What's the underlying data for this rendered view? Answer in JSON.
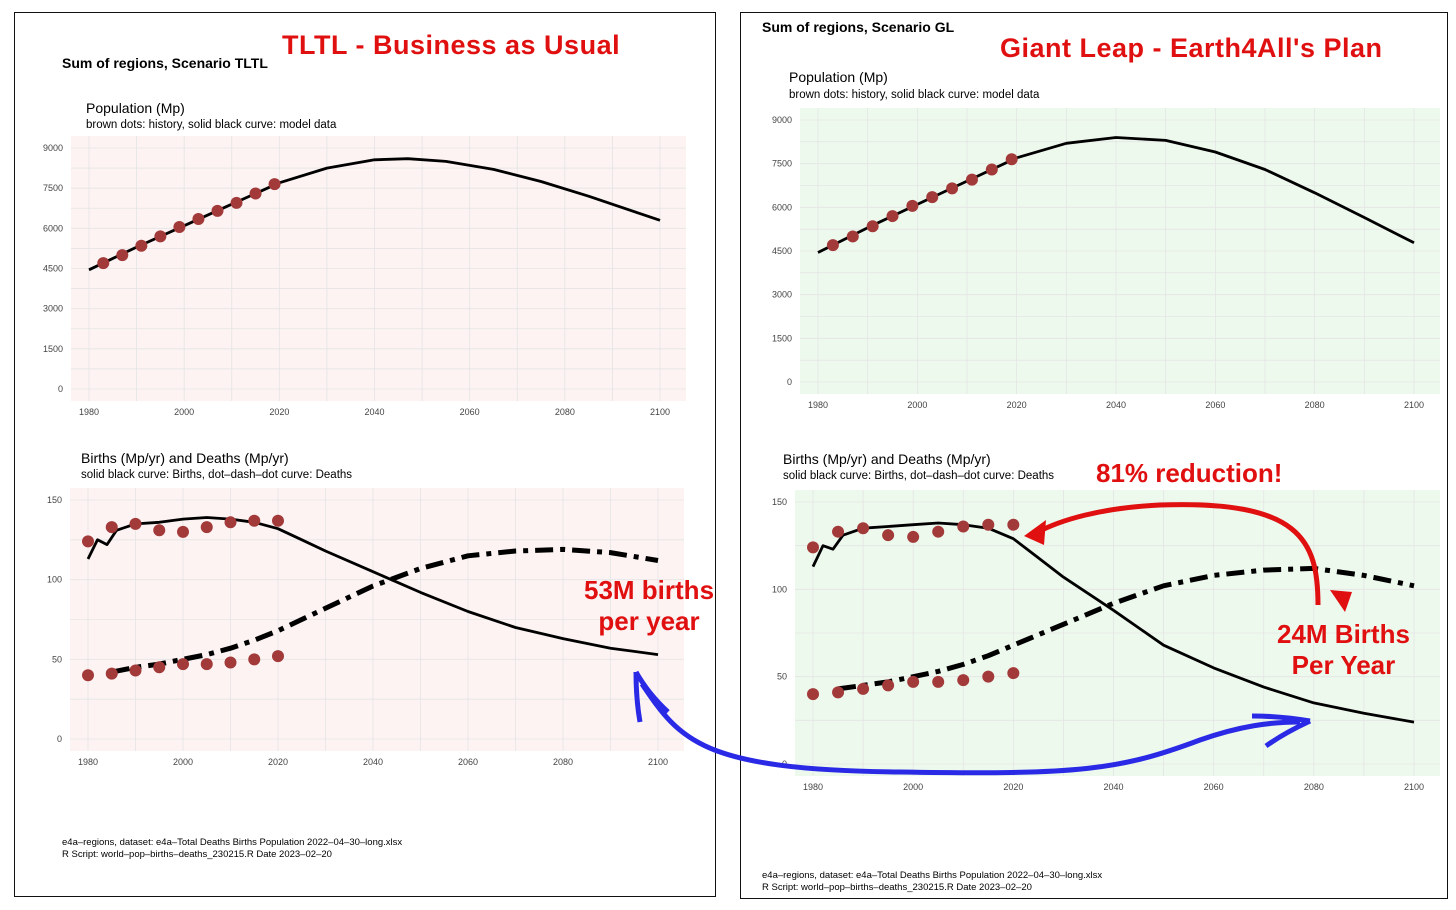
{
  "left_panel": {
    "heading": "Sum of regions, Scenario TLTL",
    "banner": "TLTL - Business as Usual",
    "footer_line1": "e4a–regions, dataset: e4a–Total Deaths Births Population 2022–04–30–long.xlsx",
    "footer_line2": "R Script: world–pop–births–deaths_230215.R  Date 2023–02–20"
  },
  "right_panel": {
    "heading": "Sum of regions, Scenario GL",
    "banner": "Giant Leap  - Earth4All's Plan",
    "footer_line1": "e4a–regions, dataset: e4a–Total Deaths Births Population 2022–04–30–long.xlsx",
    "footer_line2": "R Script: world–pop–births–deaths_230215.R  Date 2023–02–20"
  },
  "annotations": {
    "tltl_births": "53M births\nper year",
    "gl_births": "24M Births\nPer Year",
    "reduction": "81% reduction!"
  },
  "colors": {
    "tltl_background": "#fdf3f3",
    "gl_background": "#eef9ee",
    "history_dots": "#a33a3a",
    "model_line": "#000000",
    "annotation_red": "#e01010",
    "annotation_blue_arrow": "#2a2ae6"
  },
  "chart_data": [
    {
      "id": "tltl_population",
      "type": "line",
      "title": "Population (Mp)",
      "subtitle": "brown dots: history, solid black curve: model data",
      "xlim": [
        1980,
        2100
      ],
      "ylim": [
        0,
        9000
      ],
      "xticks": [
        1980,
        2000,
        2020,
        2040,
        2060,
        2080,
        2100
      ],
      "yticks": [
        0,
        1500,
        3000,
        4500,
        6000,
        7500,
        9000
      ],
      "grid": true,
      "series": [
        {
          "style": "solid",
          "x": [
            1980,
            1990,
            2000,
            2010,
            2020,
            2030,
            2040,
            2047,
            2055,
            2065,
            2075,
            2085,
            2095,
            2100
          ],
          "y": [
            4450,
            5300,
            6100,
            6900,
            7700,
            8250,
            8560,
            8600,
            8500,
            8200,
            7750,
            7200,
            6600,
            6300
          ]
        },
        {
          "style": "dots",
          "x": [
            1983,
            1987,
            1991,
            1995,
            1999,
            2003,
            2007,
            2011,
            2015,
            2019
          ],
          "y": [
            4700,
            5000,
            5350,
            5700,
            6050,
            6350,
            6650,
            6950,
            7300,
            7650
          ]
        }
      ]
    },
    {
      "id": "tltl_births_deaths",
      "type": "line",
      "title": "Births (Mp/yr) and Deaths (Mp/yr)",
      "subtitle": "solid black curve: Births, dot–dash–dot curve: Deaths",
      "xlim": [
        1980,
        2100
      ],
      "ylim": [
        0,
        150
      ],
      "xticks": [
        1980,
        2000,
        2020,
        2040,
        2060,
        2080,
        2100
      ],
      "yticks": [
        0,
        50,
        100,
        150
      ],
      "grid": true,
      "series": [
        {
          "style": "solid",
          "x": [
            1980,
            1982,
            1984,
            1986,
            1990,
            1995,
            2000,
            2005,
            2010,
            2015,
            2020,
            2025,
            2030,
            2040,
            2050,
            2060,
            2070,
            2080,
            2090,
            2100
          ],
          "y": [
            113,
            125,
            122,
            131,
            135,
            136,
            138,
            139,
            138,
            136,
            132,
            125,
            118,
            105,
            92,
            80,
            70,
            63,
            57,
            53
          ]
        },
        {
          "style": "dotdash",
          "x": [
            1985,
            1990,
            1995,
            2000,
            2005,
            2010,
            2015,
            2020,
            2030,
            2040,
            2050,
            2060,
            2070,
            2080,
            2090,
            2100
          ],
          "y": [
            42,
            45,
            47,
            50,
            53,
            57,
            62,
            68,
            82,
            96,
            107,
            115,
            118,
            119,
            117,
            112
          ]
        },
        {
          "style": "dots",
          "x": [
            1980,
            1985,
            1990,
            1995,
            2000,
            2005,
            2010,
            2015,
            2020
          ],
          "y": [
            124,
            133,
            135,
            131,
            130,
            133,
            136,
            137,
            137
          ]
        },
        {
          "style": "dots",
          "x": [
            1980,
            1985,
            1990,
            1995,
            2000,
            2005,
            2010,
            2015,
            2020
          ],
          "y": [
            40,
            41,
            43,
            45,
            47,
            47,
            48,
            50,
            52
          ]
        }
      ]
    },
    {
      "id": "gl_population",
      "type": "line",
      "title": "Population (Mp)",
      "subtitle": "brown dots: history, solid black curve: model data",
      "xlim": [
        1980,
        2100
      ],
      "ylim": [
        0,
        9000
      ],
      "xticks": [
        1980,
        2000,
        2020,
        2040,
        2060,
        2080,
        2100
      ],
      "yticks": [
        0,
        1500,
        3000,
        4500,
        6000,
        7500,
        9000
      ],
      "grid": true,
      "series": [
        {
          "style": "solid",
          "x": [
            1980,
            1990,
            2000,
            2010,
            2020,
            2030,
            2040,
            2050,
            2060,
            2070,
            2080,
            2090,
            2100
          ],
          "y": [
            4450,
            5300,
            6100,
            6900,
            7700,
            8200,
            8400,
            8300,
            7900,
            7300,
            6500,
            5650,
            4780
          ]
        },
        {
          "style": "dots",
          "x": [
            1983,
            1987,
            1991,
            1995,
            1999,
            2003,
            2007,
            2011,
            2015,
            2019
          ],
          "y": [
            4700,
            5000,
            5350,
            5700,
            6050,
            6350,
            6650,
            6950,
            7300,
            7650
          ]
        }
      ]
    },
    {
      "id": "gl_births_deaths",
      "type": "line",
      "title": "Births (Mp/yr) and Deaths (Mp/yr)",
      "subtitle": "solid black curve: Births, dot–dash–dot curve: Deaths",
      "xlim": [
        1980,
        2100
      ],
      "ylim": [
        0,
        150
      ],
      "xticks": [
        1980,
        2000,
        2020,
        2040,
        2060,
        2080,
        2100
      ],
      "yticks": [
        0,
        50,
        100,
        150
      ],
      "grid": true,
      "series": [
        {
          "style": "solid",
          "x": [
            1980,
            1982,
            1984,
            1986,
            1990,
            1995,
            2000,
            2005,
            2010,
            2015,
            2020,
            2025,
            2030,
            2040,
            2050,
            2060,
            2070,
            2080,
            2090,
            2100
          ],
          "y": [
            113,
            125,
            123,
            131,
            135,
            136,
            137,
            138,
            137,
            135,
            129,
            118,
            107,
            88,
            68,
            55,
            44,
            35,
            29,
            24
          ]
        },
        {
          "style": "dotdash",
          "x": [
            1985,
            1990,
            1995,
            2000,
            2005,
            2010,
            2015,
            2020,
            2030,
            2040,
            2050,
            2060,
            2070,
            2080,
            2090,
            2100
          ],
          "y": [
            43,
            45,
            47,
            50,
            53,
            57,
            62,
            68,
            80,
            92,
            102,
            108,
            111,
            112,
            108,
            102
          ]
        },
        {
          "style": "dots",
          "x": [
            1980,
            1985,
            1990,
            1995,
            2000,
            2005,
            2010,
            2015,
            2020
          ],
          "y": [
            124,
            133,
            135,
            131,
            130,
            133,
            136,
            137,
            137
          ]
        },
        {
          "style": "dots",
          "x": [
            1980,
            1985,
            1990,
            1995,
            2000,
            2005,
            2010,
            2015,
            2020
          ],
          "y": [
            40,
            41,
            43,
            45,
            47,
            47,
            48,
            50,
            52
          ]
        }
      ]
    }
  ]
}
